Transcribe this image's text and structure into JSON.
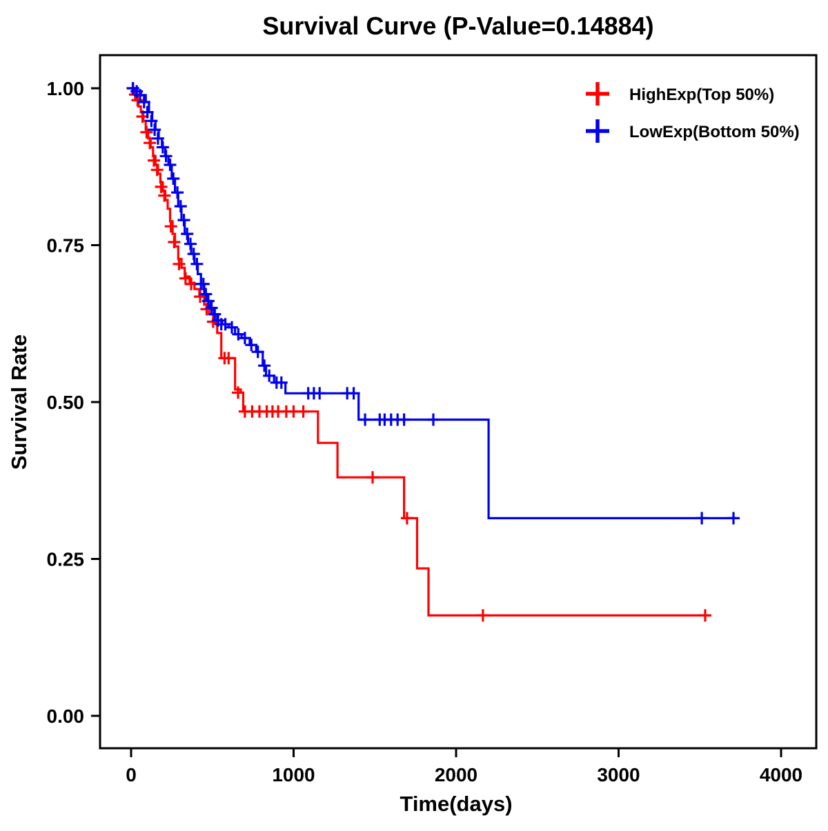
{
  "chart_data": {
    "type": "line",
    "subtype": "kaplan-meier-step-survival",
    "title": "Survival Curve (P-Value=0.14884)",
    "p_value": "0.14884",
    "xlabel": "Time(days)",
    "ylabel": "Survival Rate",
    "xlim": [
      0,
      4000
    ],
    "ylim": [
      0,
      1
    ],
    "x_ticks": [
      0,
      1000,
      2000,
      3000,
      4000
    ],
    "x_tick_labels": [
      "0",
      "1000",
      "2000",
      "3000",
      "4000"
    ],
    "y_ticks": [
      0,
      0.25,
      0.5,
      0.75,
      1
    ],
    "y_tick_labels": [
      "0.00",
      "0.25",
      "0.50",
      "0.75",
      "1.00"
    ],
    "grid": false,
    "legend_position": "top-right",
    "series": [
      {
        "name": "HighExp(Top 50%)",
        "color": "#FF0000",
        "steps": [
          [
            0,
            1.0
          ],
          [
            15,
            0.99
          ],
          [
            30,
            0.981
          ],
          [
            45,
            0.971
          ],
          [
            60,
            0.962
          ],
          [
            75,
            0.948
          ],
          [
            90,
            0.934
          ],
          [
            105,
            0.92
          ],
          [
            120,
            0.906
          ],
          [
            135,
            0.892
          ],
          [
            150,
            0.878
          ],
          [
            165,
            0.864
          ],
          [
            180,
            0.85
          ],
          [
            195,
            0.836
          ],
          [
            210,
            0.822
          ],
          [
            225,
            0.808
          ],
          [
            240,
            0.788
          ],
          [
            255,
            0.768
          ],
          [
            270,
            0.748
          ],
          [
            290,
            0.728
          ],
          [
            310,
            0.714
          ],
          [
            330,
            0.7
          ],
          [
            360,
            0.69
          ],
          [
            390,
            0.68
          ],
          [
            420,
            0.67
          ],
          [
            450,
            0.655
          ],
          [
            480,
            0.64
          ],
          [
            510,
            0.625
          ],
          [
            530,
            0.61
          ],
          [
            555,
            0.57
          ],
          [
            640,
            0.52
          ],
          [
            675,
            0.515
          ],
          [
            690,
            0.485
          ],
          [
            1150,
            0.435
          ],
          [
            1270,
            0.38
          ],
          [
            1680,
            0.315
          ],
          [
            1760,
            0.235
          ],
          [
            1830,
            0.16
          ],
          [
            3550,
            0.16
          ]
        ],
        "censors": [
          [
            10,
            1.0
          ],
          [
            25,
            0.99
          ],
          [
            40,
            0.981
          ],
          [
            70,
            0.955
          ],
          [
            95,
            0.93
          ],
          [
            115,
            0.913
          ],
          [
            140,
            0.885
          ],
          [
            160,
            0.87
          ],
          [
            185,
            0.843
          ],
          [
            205,
            0.829
          ],
          [
            245,
            0.78
          ],
          [
            265,
            0.755
          ],
          [
            295,
            0.72
          ],
          [
            335,
            0.697
          ],
          [
            370,
            0.688
          ],
          [
            425,
            0.668
          ],
          [
            465,
            0.648
          ],
          [
            505,
            0.628
          ],
          [
            575,
            0.57
          ],
          [
            600,
            0.57
          ],
          [
            658,
            0.515
          ],
          [
            700,
            0.485
          ],
          [
            745,
            0.485
          ],
          [
            790,
            0.485
          ],
          [
            835,
            0.485
          ],
          [
            870,
            0.485
          ],
          [
            905,
            0.485
          ],
          [
            955,
            0.485
          ],
          [
            1000,
            0.485
          ],
          [
            1060,
            0.485
          ],
          [
            1486,
            0.38
          ],
          [
            1698,
            0.315
          ],
          [
            2165,
            0.16
          ],
          [
            3533,
            0.16
          ]
        ]
      },
      {
        "name": "LowExp(Bottom 50%)",
        "color": "#0000EE",
        "steps": [
          [
            0,
            1.0
          ],
          [
            30,
            0.995
          ],
          [
            60,
            0.989
          ],
          [
            90,
            0.978
          ],
          [
            110,
            0.962
          ],
          [
            130,
            0.948
          ],
          [
            150,
            0.934
          ],
          [
            170,
            0.92
          ],
          [
            190,
            0.906
          ],
          [
            210,
            0.892
          ],
          [
            230,
            0.878
          ],
          [
            250,
            0.856
          ],
          [
            270,
            0.834
          ],
          [
            290,
            0.812
          ],
          [
            310,
            0.79
          ],
          [
            330,
            0.768
          ],
          [
            350,
            0.752
          ],
          [
            370,
            0.736
          ],
          [
            390,
            0.72
          ],
          [
            410,
            0.704
          ],
          [
            430,
            0.688
          ],
          [
            450,
            0.672
          ],
          [
            470,
            0.661
          ],
          [
            490,
            0.65
          ],
          [
            510,
            0.64
          ],
          [
            530,
            0.63
          ],
          [
            560,
            0.624
          ],
          [
            600,
            0.619
          ],
          [
            640,
            0.608
          ],
          [
            680,
            0.602
          ],
          [
            730,
            0.591
          ],
          [
            770,
            0.58
          ],
          [
            810,
            0.558
          ],
          [
            830,
            0.542
          ],
          [
            880,
            0.531
          ],
          [
            950,
            0.514
          ],
          [
            1400,
            0.472
          ],
          [
            2200,
            0.315
          ],
          [
            3720,
            0.315
          ]
        ],
        "censors": [
          [
            12,
            1.0
          ],
          [
            35,
            0.995
          ],
          [
            55,
            0.989
          ],
          [
            80,
            0.978
          ],
          [
            100,
            0.962
          ],
          [
            125,
            0.948
          ],
          [
            145,
            0.934
          ],
          [
            165,
            0.92
          ],
          [
            195,
            0.906
          ],
          [
            215,
            0.892
          ],
          [
            240,
            0.878
          ],
          [
            260,
            0.856
          ],
          [
            285,
            0.834
          ],
          [
            305,
            0.812
          ],
          [
            325,
            0.79
          ],
          [
            345,
            0.768
          ],
          [
            365,
            0.752
          ],
          [
            385,
            0.736
          ],
          [
            405,
            0.72
          ],
          [
            430,
            0.688
          ],
          [
            445,
            0.688
          ],
          [
            460,
            0.672
          ],
          [
            475,
            0.661
          ],
          [
            495,
            0.65
          ],
          [
            515,
            0.64
          ],
          [
            535,
            0.63
          ],
          [
            555,
            0.624
          ],
          [
            580,
            0.624
          ],
          [
            620,
            0.619
          ],
          [
            660,
            0.608
          ],
          [
            700,
            0.602
          ],
          [
            740,
            0.591
          ],
          [
            780,
            0.58
          ],
          [
            820,
            0.558
          ],
          [
            850,
            0.542
          ],
          [
            895,
            0.531
          ],
          [
            925,
            0.531
          ],
          [
            1090,
            0.514
          ],
          [
            1125,
            0.514
          ],
          [
            1160,
            0.514
          ],
          [
            1330,
            0.514
          ],
          [
            1370,
            0.514
          ],
          [
            1440,
            0.472
          ],
          [
            1530,
            0.472
          ],
          [
            1560,
            0.472
          ],
          [
            1600,
            0.472
          ],
          [
            1640,
            0.472
          ],
          [
            1680,
            0.472
          ],
          [
            1860,
            0.472
          ],
          [
            3512,
            0.315
          ],
          [
            3707,
            0.315
          ]
        ]
      }
    ]
  }
}
